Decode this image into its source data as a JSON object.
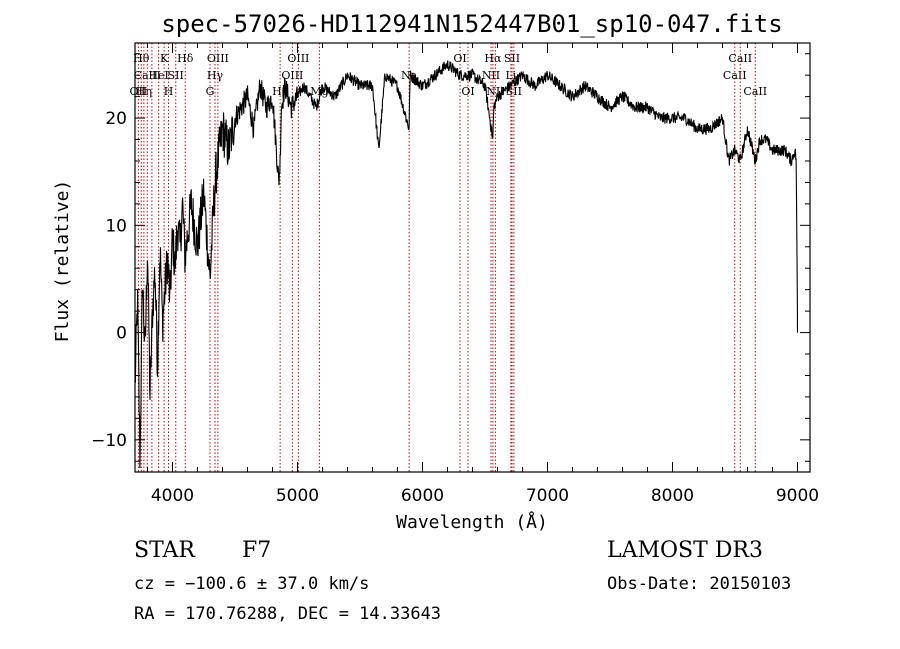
{
  "chart_data": {
    "type": "line",
    "title": "spec-57026-HD112941N152447B01_sp10-047.fits",
    "xlabel": "Wavelength (Å)",
    "ylabel": "Flux (relative)",
    "xlim": [
      3700,
      9100
    ],
    "ylim": [
      -13,
      27
    ],
    "xticks": [
      4000,
      5000,
      6000,
      7000,
      8000,
      9000
    ],
    "yticks": [
      -10,
      0,
      10,
      20
    ],
    "grid": false,
    "legend": "none",
    "line_color": "#000000",
    "marker_color": "#cc0000",
    "series": [
      {
        "x": [
          3700,
          3720,
          3740,
          3760,
          3780,
          3800,
          3820,
          3840,
          3860,
          3880,
          3900,
          3920,
          3940,
          3960,
          3980,
          4000,
          4020,
          4040,
          4060,
          4080,
          4100,
          4150,
          4200,
          4250,
          4300,
          4330,
          4350,
          4400,
          4450,
          4500,
          4550,
          4600,
          4650,
          4700,
          4750,
          4800,
          4850,
          4861,
          4870,
          4900,
          4950,
          5000,
          5050,
          5100,
          5150,
          5175,
          5200,
          5300,
          5400,
          5500,
          5600,
          5650,
          5700,
          5800,
          5893,
          5900,
          6000,
          6100,
          6200,
          6300,
          6400,
          6500,
          6563,
          6570,
          6600,
          6700,
          6800,
          6900,
          7000,
          7100,
          7200,
          7300,
          7400,
          7500,
          7600,
          7700,
          7800,
          7900,
          8000,
          8100,
          8200,
          8300,
          8400,
          8450,
          8498,
          8542,
          8600,
          8662,
          8700,
          8750,
          8800,
          8850,
          8900,
          8950,
          8980,
          8990,
          9000
        ],
        "y": [
          -5,
          3,
          -12,
          5,
          -2,
          8,
          -6,
          2,
          6,
          -3,
          8,
          1,
          4,
          7,
          3,
          9,
          6,
          10,
          8,
          12,
          7,
          12,
          8,
          13,
          5,
          12,
          15,
          19,
          17,
          20,
          21,
          22,
          19,
          23,
          21,
          22,
          14,
          16,
          21,
          23,
          21,
          22,
          23,
          22,
          21,
          22,
          23,
          22,
          24,
          23,
          23,
          17,
          24,
          23,
          19,
          24,
          23,
          24,
          25,
          24,
          24,
          23,
          18,
          21,
          22,
          23,
          24,
          23,
          24,
          23,
          22,
          23,
          22,
          21,
          22,
          21,
          21,
          20,
          20,
          20,
          19,
          19,
          20,
          16,
          17,
          16,
          19,
          16,
          18,
          18,
          17,
          17,
          17,
          16,
          17,
          16,
          0
        ]
      }
    ],
    "spectral_lines": [
      {
        "w": 3727,
        "label": "OII",
        "row": 3
      },
      {
        "w": 3750,
        "label": "Hθ",
        "row": 1
      },
      {
        "w": 3771,
        "label": "Hη",
        "row": 3
      },
      {
        "w": 3798,
        "label": "Ca II",
        "row": 2
      },
      {
        "w": 3835,
        "label": "",
        "row": 0
      },
      {
        "w": 3889,
        "label": "HeI",
        "row": 2
      },
      {
        "w": 3933,
        "label": "K",
        "row": 1
      },
      {
        "w": 3968,
        "label": "H",
        "row": 3
      },
      {
        "w": 4026,
        "label": "SII",
        "row": 2
      },
      {
        "w": 4102,
        "label": "Hδ",
        "row": 1
      },
      {
        "w": 4300,
        "label": "G",
        "row": 3
      },
      {
        "w": 4340,
        "label": "Hγ",
        "row": 2
      },
      {
        "w": 4363,
        "label": "OIII",
        "row": 1
      },
      {
        "w": 4861,
        "label": "Hβ",
        "row": 3
      },
      {
        "w": 4959,
        "label": "OIII",
        "row": 2
      },
      {
        "w": 5007,
        "label": "OIII",
        "row": 1
      },
      {
        "w": 5175,
        "label": "Mg",
        "row": 3
      },
      {
        "w": 5893,
        "label": "Na",
        "row": 2
      },
      {
        "w": 6300,
        "label": "OI",
        "row": 1
      },
      {
        "w": 6364,
        "label": "OI",
        "row": 3
      },
      {
        "w": 6548,
        "label": "NII",
        "row": 2
      },
      {
        "w": 6563,
        "label": "Hα",
        "row": 1
      },
      {
        "w": 6583,
        "label": "NII",
        "row": 3
      },
      {
        "w": 6707,
        "label": "Li",
        "row": 2
      },
      {
        "w": 6716,
        "label": "SII",
        "row": 1
      },
      {
        "w": 6731,
        "label": "SII",
        "row": 3
      },
      {
        "w": 8498,
        "label": "CaII",
        "row": 2
      },
      {
        "w": 8542,
        "label": "CaII",
        "row": 1
      },
      {
        "w": 8662,
        "label": "CaII",
        "row": 3
      }
    ]
  },
  "info": {
    "object_class": "STAR",
    "subclass": "F7",
    "survey": "LAMOST DR3",
    "cz": "cz = −100.6 ± 37.0 km/s",
    "obs_date": "Obs-Date: 20150103",
    "coords": "RA = 170.76288, DEC =  14.33643"
  }
}
